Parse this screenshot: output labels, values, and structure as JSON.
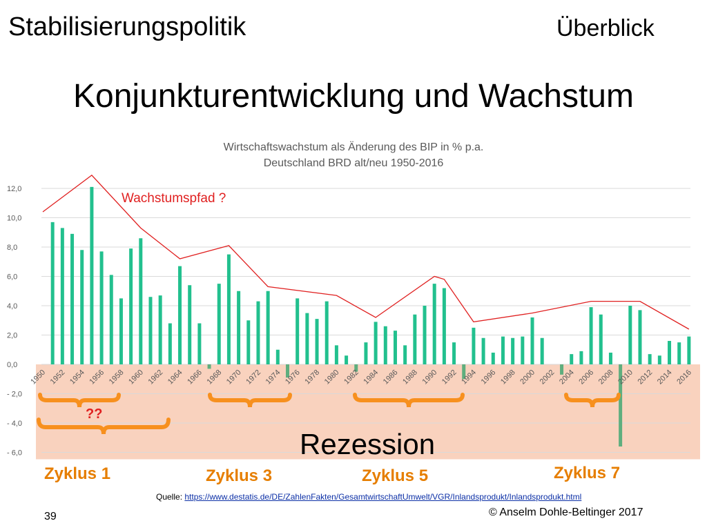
{
  "header": {
    "title": "Stabilisierungspolitik",
    "right": "Überblick"
  },
  "slide_title": "Konjunkturentwicklung und Wachstum",
  "chart_data": {
    "type": "bar",
    "title": "Wirtschaftswachstum als Änderung des BIP in % p.a.",
    "subtitle": "Deutschland BRD alt/neu 1950-2016",
    "x": [
      1950,
      1951,
      1952,
      1953,
      1954,
      1955,
      1956,
      1957,
      1958,
      1959,
      1960,
      1961,
      1962,
      1963,
      1964,
      1965,
      1966,
      1967,
      1968,
      1969,
      1970,
      1971,
      1972,
      1973,
      1974,
      1975,
      1976,
      1977,
      1978,
      1979,
      1980,
      1981,
      1982,
      1983,
      1984,
      1985,
      1986,
      1987,
      1988,
      1989,
      1990,
      1991,
      1992,
      1993,
      1994,
      1995,
      1996,
      1997,
      1998,
      1999,
      2000,
      2001,
      2002,
      2003,
      2004,
      2005,
      2006,
      2007,
      2008,
      2009,
      2010,
      2011,
      2012,
      2013,
      2014,
      2015,
      2016
    ],
    "values": [
      null,
      9.7,
      9.3,
      8.9,
      7.8,
      12.1,
      7.7,
      6.1,
      4.5,
      7.9,
      8.6,
      4.6,
      4.7,
      2.8,
      6.7,
      5.4,
      2.8,
      -0.3,
      5.5,
      7.5,
      5.0,
      3.0,
      4.3,
      5.0,
      1.0,
      -0.9,
      4.5,
      3.5,
      3.1,
      4.3,
      1.3,
      0.6,
      -0.5,
      1.5,
      2.9,
      2.6,
      2.3,
      1.3,
      3.4,
      4.0,
      5.5,
      5.2,
      1.5,
      -1.0,
      2.5,
      1.8,
      0.8,
      1.9,
      1.8,
      1.9,
      3.2,
      1.8,
      0.0,
      -0.7,
      0.7,
      0.9,
      3.9,
      3.4,
      0.8,
      -5.6,
      4.0,
      3.7,
      0.7,
      0.6,
      1.6,
      1.5,
      1.9
    ],
    "ylim": [
      -6,
      12
    ],
    "yticks": [
      12,
      10,
      8,
      6,
      4,
      2,
      0,
      -2,
      -4,
      -6
    ],
    "ytick_labels": [
      "12,0",
      "10,0",
      "8,0",
      "6,0",
      "4,0",
      "2,0",
      "0,0",
      "- 2,0",
      "- 4,0",
      "- 6,0"
    ],
    "xtick_labels": [
      "1950",
      "1952",
      "1954",
      "1956",
      "1958",
      "1960",
      "1962",
      "1964",
      "1966",
      "1968",
      "1970",
      "1972",
      "1974",
      "1976",
      "1978",
      "1980",
      "1982",
      "1984",
      "1986",
      "1988",
      "1990",
      "1992",
      "1994",
      "1996",
      "1998",
      "2000",
      "2002",
      "2004",
      "2006",
      "2008",
      "2010",
      "2012",
      "2014",
      "2016"
    ],
    "growth_path": {
      "label": "Wachstumspfad ?",
      "x": [
        1950,
        1955,
        1960,
        1964,
        1969,
        1973,
        1980,
        1984,
        1990,
        1991,
        1994,
        2000,
        2006,
        2011,
        2016
      ],
      "y": [
        10.4,
        12.9,
        9.3,
        7.2,
        8.1,
        5.3,
        4.7,
        3.2,
        6.0,
        5.8,
        2.9,
        3.5,
        4.3,
        4.3,
        2.4
      ]
    },
    "recession_label": "Rezession",
    "cycles": [
      {
        "label": "Zyklus 1",
        "from": 1950,
        "to": 1957
      },
      {
        "label": "Zyklus 3",
        "from": 1968,
        "to": 1975
      },
      {
        "label": "Zyklus 5",
        "from": 1983,
        "to": 1993
      },
      {
        "label": "Zyklus 7",
        "from": 2005,
        "to": 2009
      }
    ],
    "question_label": "??",
    "grid": true,
    "colors": {
      "bar": "#22c08e",
      "bar_negative": "#5fae7e",
      "path": "#e02020",
      "recession_band": "#f9d2be",
      "brace": "#f7901e",
      "cycle_text": "#e67e00"
    }
  },
  "source": {
    "prefix": "Quelle: ",
    "link": "https://www.destatis.de/DE/ZahlenFakten/GesamtwirtschaftUmwelt/VGR/Inlandsprodukt/Inlandsprodukt.html"
  },
  "page_number": "39",
  "copyright": "© Anselm Dohle-Beltinger 2017"
}
